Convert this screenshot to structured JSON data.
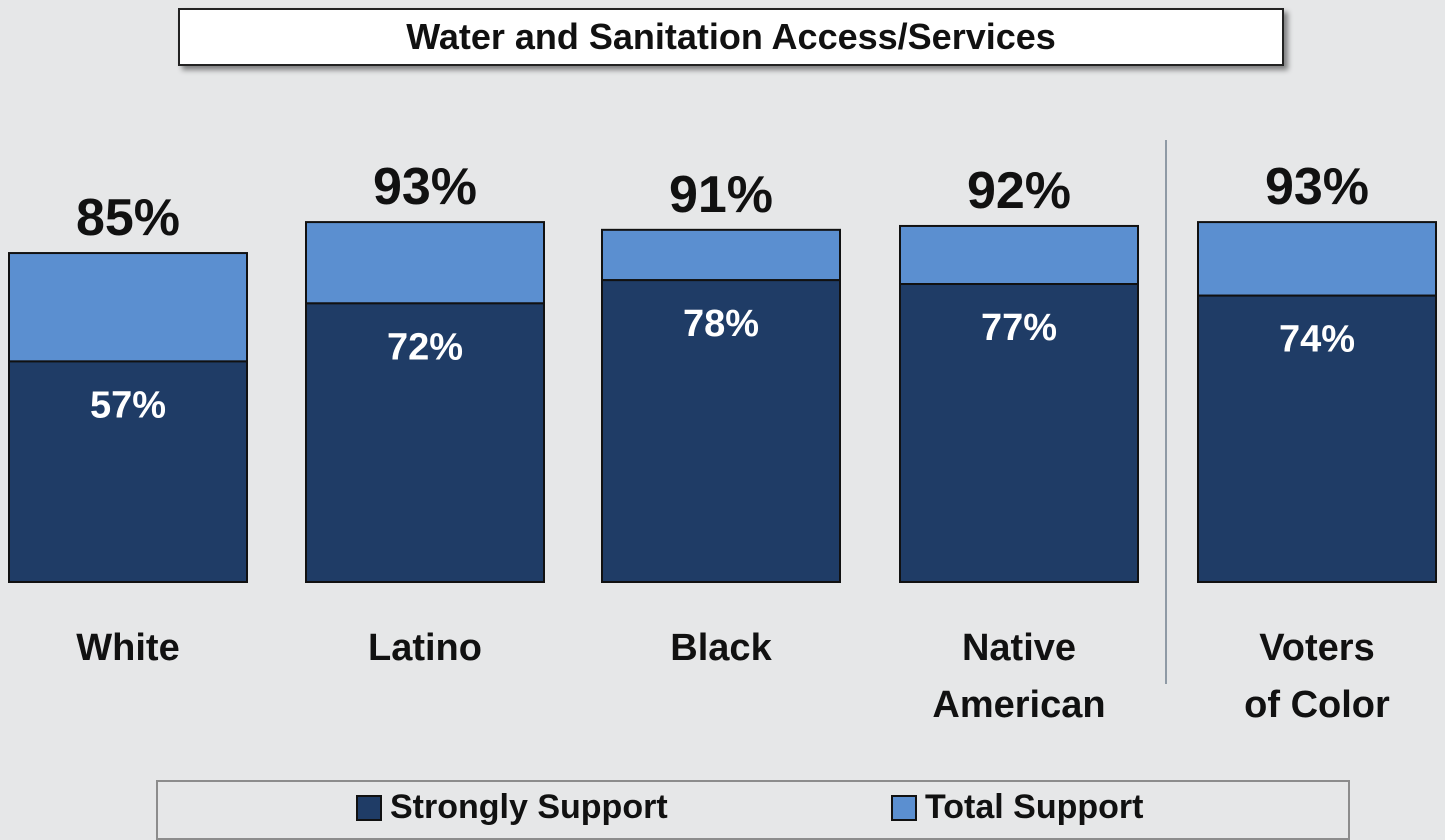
{
  "chart_data": {
    "type": "bar",
    "title": "Water and Sanitation Access/Services",
    "categories": [
      [
        "White"
      ],
      [
        "Latino"
      ],
      [
        "Black"
      ],
      [
        "Native",
        "American"
      ],
      [
        "Voters",
        "of Color"
      ]
    ],
    "series": [
      {
        "name": "Strongly Support",
        "values": [
          57,
          72,
          78,
          77,
          74
        ],
        "labels": [
          "57%",
          "72%",
          "78%",
          "77%",
          "74%"
        ]
      },
      {
        "name": "Total Support",
        "values": [
          85,
          93,
          91,
          92,
          93
        ],
        "labels": [
          "85%",
          "93%",
          "91%",
          "92%",
          "93%"
        ]
      }
    ],
    "ylim": [
      0,
      100
    ],
    "legend": "bottom",
    "colors": {
      "strongly": "#1f3c66",
      "total": "#5b8fd0",
      "divider": "#8f9aa5"
    }
  }
}
